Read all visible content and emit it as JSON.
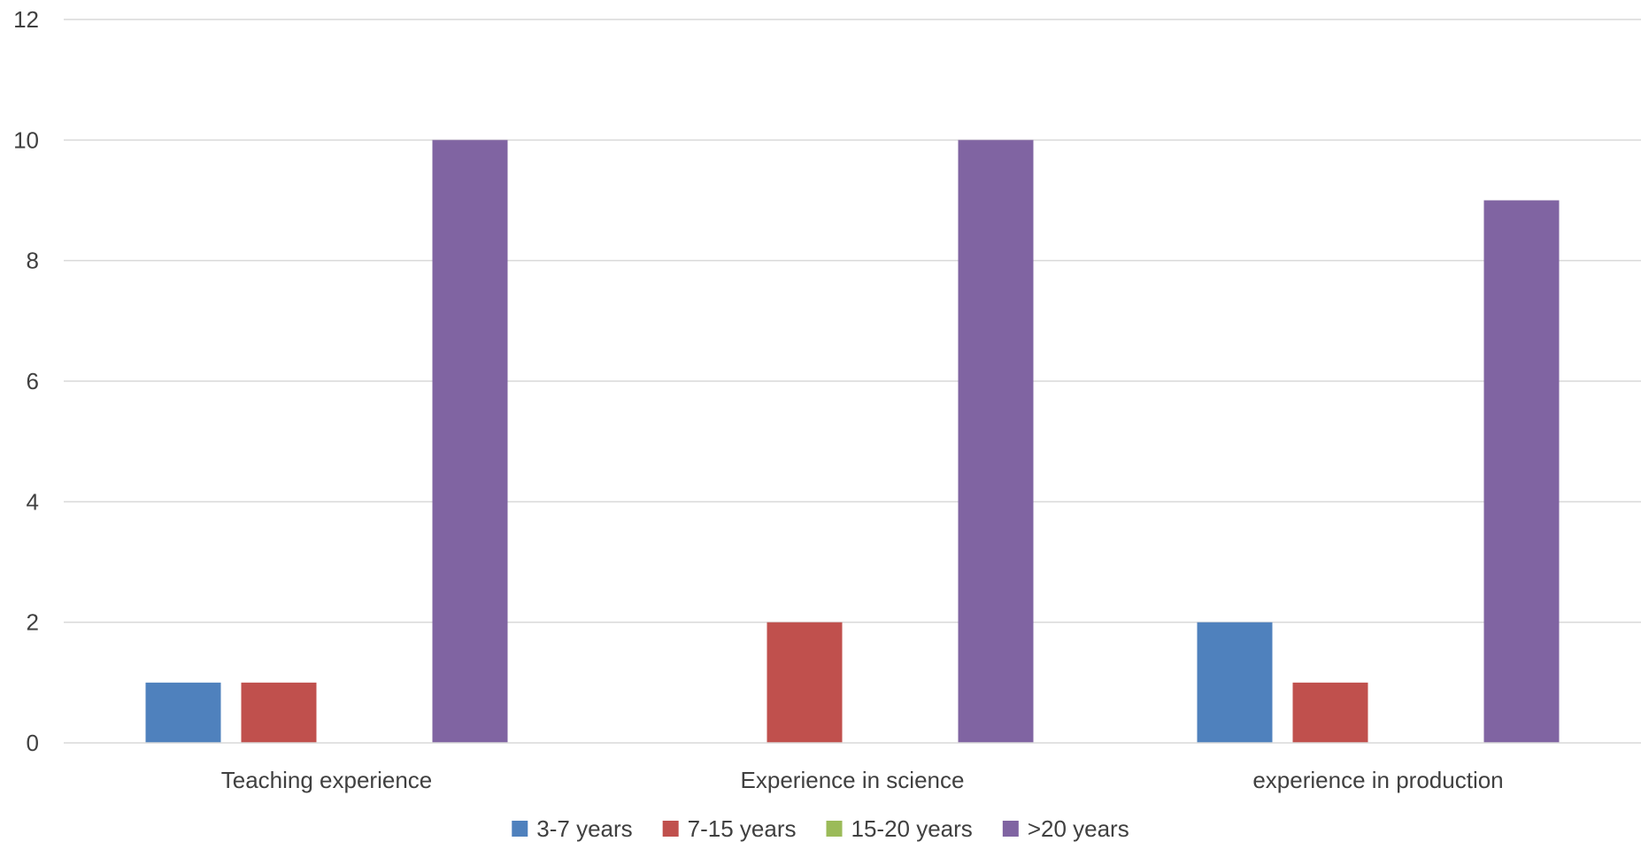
{
  "chart_data": {
    "type": "bar",
    "categories": [
      "Teaching experience",
      "Experience in science",
      "experience in production"
    ],
    "series": [
      {
        "name": "3-7 years",
        "color": "#4F81BD",
        "values": [
          1,
          0,
          2
        ]
      },
      {
        "name": "7-15 years",
        "color": "#C0504D",
        "values": [
          1,
          2,
          1
        ]
      },
      {
        "name": "15-20 years",
        "color": "#9BBB59",
        "values": [
          0,
          0,
          0
        ]
      },
      {
        "name": ">20 years",
        "color": "#8064A2",
        "values": [
          10,
          10,
          9
        ]
      }
    ],
    "ylim": [
      0,
      12
    ],
    "yticks": [
      0,
      2,
      4,
      6,
      8,
      10,
      12
    ],
    "grid": true,
    "legend_position": "bottom",
    "title": "",
    "xlabel": "",
    "ylabel": ""
  }
}
